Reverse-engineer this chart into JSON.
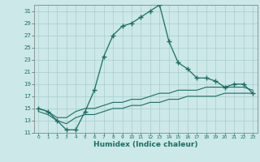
{
  "xlabel": "Humidex (Indice chaleur)",
  "bg_color": "#cce8e8",
  "line_color": "#1a6e64",
  "xlim": [
    -0.5,
    23.5
  ],
  "ylim": [
    11,
    32
  ],
  "yticks": [
    11,
    13,
    15,
    17,
    19,
    21,
    23,
    25,
    27,
    29,
    31
  ],
  "xticks": [
    0,
    1,
    2,
    3,
    4,
    5,
    6,
    7,
    8,
    9,
    10,
    11,
    12,
    13,
    14,
    15,
    16,
    17,
    18,
    19,
    20,
    21,
    22,
    23
  ],
  "curve1_x": [
    0,
    1,
    2,
    3,
    4,
    5,
    6,
    7,
    8,
    9,
    10,
    11,
    12,
    13,
    14,
    15,
    16,
    17,
    18,
    19,
    20,
    21,
    22,
    23
  ],
  "curve1_y": [
    15.0,
    14.5,
    13.0,
    11.5,
    11.5,
    14.5,
    18.0,
    23.5,
    27.0,
    28.5,
    29.0,
    30.0,
    31.0,
    32.0,
    26.0,
    22.5,
    21.5,
    20.0,
    20.0,
    19.5,
    18.5,
    19.0,
    19.0,
    17.5
  ],
  "curve2_x": [
    0,
    1,
    2,
    3,
    4,
    5,
    6,
    7,
    8,
    9,
    10,
    11,
    12,
    13,
    14,
    15,
    16,
    17,
    18,
    19,
    20,
    21,
    22,
    23
  ],
  "curve2_y": [
    15.0,
    14.5,
    13.5,
    13.5,
    14.5,
    15.0,
    15.0,
    15.5,
    16.0,
    16.0,
    16.5,
    16.5,
    17.0,
    17.5,
    17.5,
    18.0,
    18.0,
    18.0,
    18.5,
    18.5,
    18.5,
    18.5,
    18.5,
    18.0
  ],
  "curve3_x": [
    0,
    1,
    2,
    3,
    4,
    5,
    6,
    7,
    8,
    9,
    10,
    11,
    12,
    13,
    14,
    15,
    16,
    17,
    18,
    19,
    20,
    21,
    22,
    23
  ],
  "curve3_y": [
    14.5,
    14.0,
    13.0,
    12.5,
    13.5,
    14.0,
    14.0,
    14.5,
    15.0,
    15.0,
    15.5,
    15.5,
    16.0,
    16.0,
    16.5,
    16.5,
    17.0,
    17.0,
    17.0,
    17.0,
    17.5,
    17.5,
    17.5,
    17.5
  ],
  "grid_color": "#aacccc",
  "tick_color": "#1a6e64",
  "label_fontsize": 5.5,
  "xlabel_fontsize": 6.5
}
